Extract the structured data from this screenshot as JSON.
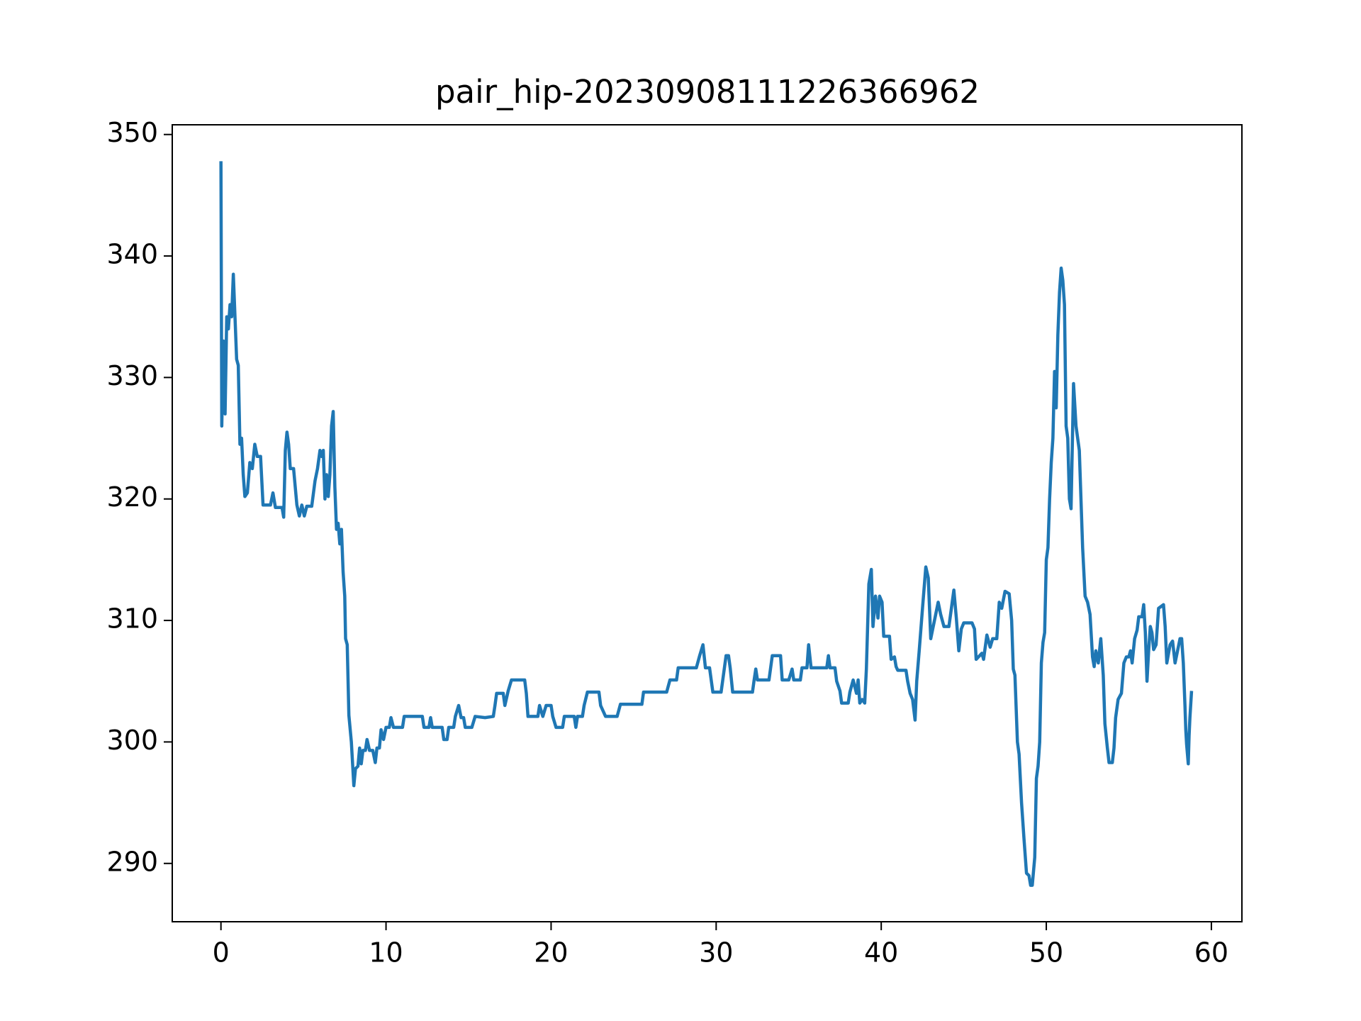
{
  "chart_data": {
    "type": "line",
    "title": "pair_hip-20230908111226366962",
    "color": "#1f77b4",
    "x": [
      0.0,
      0.05,
      0.15,
      0.25,
      0.35,
      0.45,
      0.55,
      0.65,
      0.75,
      0.85,
      0.95,
      1.05,
      1.15,
      1.25,
      1.35,
      1.45,
      1.6,
      1.75,
      1.9,
      2.05,
      2.2,
      2.4,
      2.55,
      3.0,
      3.15,
      3.3,
      3.7,
      3.8,
      3.9,
      4.0,
      4.1,
      4.2,
      4.4,
      4.6,
      4.75,
      4.9,
      5.05,
      5.2,
      5.5,
      5.7,
      5.85,
      6.0,
      6.1,
      6.2,
      6.3,
      6.4,
      6.5,
      6.6,
      6.7,
      6.8,
      6.9,
      7.0,
      7.1,
      7.2,
      7.3,
      7.4,
      7.5,
      7.55,
      7.65,
      7.75,
      7.9,
      8.05,
      8.15,
      8.3,
      8.4,
      8.5,
      8.6,
      8.75,
      8.85,
      9.0,
      9.2,
      9.35,
      9.45,
      9.6,
      9.7,
      9.85,
      10.0,
      10.2,
      10.3,
      10.45,
      11.0,
      11.1,
      12.2,
      12.3,
      12.6,
      12.7,
      12.8,
      13.4,
      13.5,
      13.7,
      13.8,
      14.1,
      14.2,
      14.4,
      14.55,
      14.7,
      14.8,
      15.2,
      15.4,
      16.0,
      16.5,
      16.6,
      16.7,
      17.1,
      17.2,
      17.4,
      17.6,
      18.4,
      18.5,
      18.6,
      19.2,
      19.3,
      19.5,
      19.7,
      20.0,
      20.1,
      20.3,
      20.7,
      20.8,
      21.4,
      21.5,
      21.6,
      21.9,
      22.0,
      22.2,
      22.9,
      23.0,
      23.3,
      24.0,
      24.2,
      25.5,
      25.6,
      27.0,
      27.2,
      27.6,
      27.7,
      28.8,
      29.0,
      29.2,
      29.35,
      29.6,
      29.8,
      30.3,
      30.5,
      30.6,
      30.75,
      30.85,
      31.0,
      32.2,
      32.3,
      32.4,
      32.5,
      33.2,
      33.4,
      33.9,
      34.0,
      34.4,
      34.6,
      34.7,
      35.1,
      35.2,
      35.5,
      35.6,
      35.75,
      36.7,
      36.8,
      36.9,
      37.2,
      37.3,
      37.5,
      37.6,
      38.0,
      38.1,
      38.3,
      38.5,
      38.6,
      38.7,
      38.85,
      39.0,
      39.1,
      39.25,
      39.4,
      39.5,
      39.65,
      39.8,
      39.9,
      40.05,
      40.15,
      40.5,
      40.6,
      40.8,
      40.9,
      41.0,
      41.5,
      41.6,
      41.75,
      41.9,
      42.05,
      42.15,
      42.3,
      42.5,
      42.7,
      42.85,
      43.0,
      43.15,
      43.3,
      43.45,
      43.6,
      43.8,
      44.1,
      44.25,
      44.4,
      44.55,
      44.7,
      44.85,
      45.0,
      45.5,
      45.65,
      45.75,
      46.1,
      46.2,
      46.4,
      46.6,
      46.75,
      47.0,
      47.15,
      47.3,
      47.5,
      47.75,
      47.9,
      48.0,
      48.1,
      48.25,
      48.35,
      48.5,
      48.65,
      48.8,
      48.95,
      49.05,
      49.15,
      49.3,
      49.4,
      49.5,
      49.6,
      49.7,
      49.8,
      49.9,
      50.0,
      50.1,
      50.2,
      50.3,
      50.4,
      50.5,
      50.6,
      50.7,
      50.8,
      50.9,
      51.0,
      51.1,
      51.2,
      51.3,
      51.4,
      51.5,
      51.65,
      51.8,
      51.9,
      52.0,
      52.2,
      52.35,
      52.5,
      52.65,
      52.8,
      52.9,
      53.0,
      53.15,
      53.3,
      53.45,
      53.55,
      53.7,
      53.8,
      54.0,
      54.1,
      54.2,
      54.35,
      54.55,
      54.7,
      54.85,
      55.0,
      55.1,
      55.2,
      55.35,
      55.5,
      55.6,
      55.8,
      55.9,
      56.0,
      56.1,
      56.2,
      56.3,
      56.4,
      56.5,
      56.65,
      56.8,
      57.1,
      57.2,
      57.3,
      57.5,
      57.65,
      57.8,
      57.95,
      58.1,
      58.2,
      58.3,
      58.4,
      58.45,
      58.5,
      58.6,
      58.65,
      58.7,
      58.8
    ],
    "values": [
      347.8,
      326,
      333,
      327,
      335,
      334,
      336,
      335,
      338.5,
      335,
      331.5,
      331,
      324.5,
      325,
      322,
      320.2,
      320.5,
      323,
      322.5,
      324.5,
      323.5,
      323.5,
      319.5,
      319.5,
      320.5,
      319.3,
      319.3,
      318.5,
      324,
      325.5,
      324.5,
      322.5,
      322.5,
      319.5,
      318.6,
      319.5,
      318.6,
      319.4,
      319.4,
      321.5,
      322.5,
      324,
      323.5,
      324,
      320,
      322,
      320.2,
      322,
      326,
      327.2,
      321,
      317.5,
      318,
      316.3,
      317.5,
      314,
      312,
      308.5,
      308,
      302.2,
      300,
      296.4,
      297.8,
      298,
      299.5,
      298.2,
      299.3,
      299.3,
      300.2,
      299.3,
      299.3,
      298.3,
      299.5,
      299.5,
      301,
      300.2,
      301.2,
      301.2,
      302,
      301.2,
      301.2,
      302.1,
      302.1,
      301.2,
      301.2,
      302,
      301.2,
      301.2,
      300.2,
      300.2,
      301.2,
      301.2,
      302.1,
      303,
      302,
      302,
      301.2,
      301.2,
      302.1,
      302,
      302.1,
      303,
      304,
      304,
      303,
      304.2,
      305.1,
      305.1,
      304,
      302.1,
      302.1,
      303,
      302.1,
      303,
      303,
      302.1,
      301.2,
      301.2,
      302.1,
      302.1,
      301.2,
      302.1,
      302.1,
      303,
      304.1,
      304.1,
      303,
      302.1,
      302.1,
      303.1,
      303.1,
      304.1,
      304.1,
      305.1,
      305.1,
      306.1,
      306.1,
      307.1,
      308,
      306.1,
      306.1,
      304.1,
      304.1,
      306.1,
      307.1,
      307.1,
      306.1,
      304.1,
      304.1,
      305.1,
      306,
      305.1,
      305.1,
      307.1,
      307.1,
      305.1,
      305.1,
      306,
      305.1,
      305.1,
      306.1,
      306.1,
      308,
      306.1,
      306.1,
      307.1,
      306.1,
      306.1,
      305,
      304.2,
      303.2,
      303.2,
      304.1,
      305.1,
      304,
      305.1,
      303.2,
      303.5,
      303.2,
      306,
      313,
      314.2,
      309.5,
      312,
      310.2,
      312,
      311.5,
      308.7,
      308.7,
      306.8,
      307,
      306.2,
      305.9,
      305.9,
      305,
      304,
      303.5,
      301.8,
      305,
      307.5,
      311,
      314.4,
      313.5,
      308.5,
      309.5,
      310.5,
      311.5,
      310.5,
      309.5,
      309.5,
      311,
      312.5,
      310.2,
      307.5,
      309.3,
      309.8,
      309.8,
      309.3,
      306.8,
      307.3,
      306.8,
      308.8,
      307.8,
      308.5,
      308.5,
      311.5,
      311,
      312.4,
      312.2,
      310,
      306,
      305.5,
      300,
      299,
      295,
      292,
      289.2,
      289,
      288.2,
      288.2,
      290.5,
      297,
      298,
      300,
      306.5,
      308.2,
      309,
      315,
      316,
      320,
      323,
      325,
      330.5,
      327.5,
      333.5,
      337,
      339,
      338,
      336,
      326,
      325,
      320,
      319.2,
      329.5,
      326,
      325,
      324,
      316,
      312,
      311.5,
      310.5,
      307,
      306.2,
      307.5,
      306.5,
      308.5,
      305.5,
      301.5,
      299.5,
      298.3,
      298.3,
      299.5,
      302,
      303.5,
      304,
      306.5,
      307,
      307,
      307.5,
      306.5,
      308.5,
      309.2,
      310.3,
      310.3,
      311.3,
      309,
      305,
      307.5,
      309.5,
      309,
      307.6,
      308,
      311,
      311.3,
      309.5,
      306.5,
      308,
      308.3,
      306.5,
      307.5,
      308.5,
      308.5,
      306.5,
      303,
      301,
      299.8,
      298.2,
      300.5,
      302,
      304.2
    ],
    "xlim": [
      -2.95,
      61.85
    ],
    "ylim": [
      285.2,
      350.8
    ],
    "xticks": [
      0,
      10,
      20,
      30,
      40,
      50,
      60
    ],
    "yticks": [
      290,
      300,
      310,
      320,
      330,
      340,
      350
    ]
  }
}
